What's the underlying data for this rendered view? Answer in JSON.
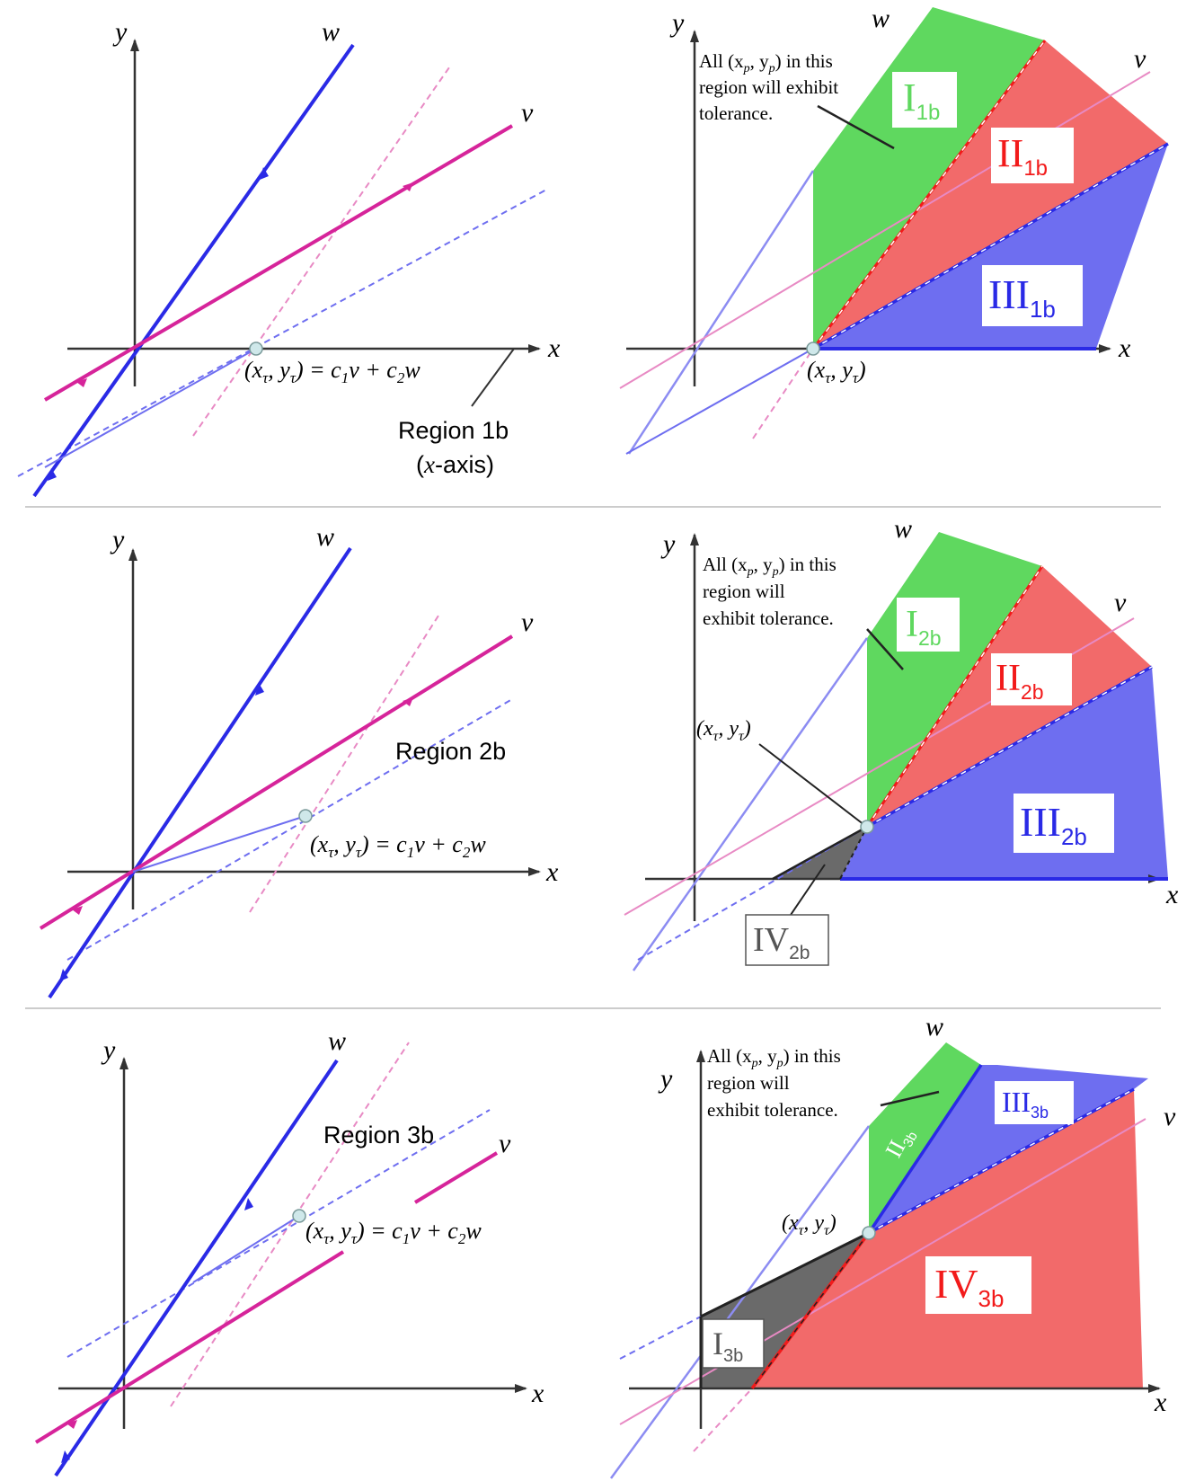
{
  "colors": {
    "blue": "#2a2ae6",
    "blue_light": "#8c8cf2",
    "magenta": "#d6249a",
    "magenta_light": "#e88ac4",
    "green_fill": "#5fd85f",
    "red_fill": "#f26a6a",
    "red_line": "#f21a1a",
    "blue_fill": "#6e6ef0",
    "gray_fill": "#6a6a6a",
    "axis": "#333333",
    "divider": "#cccccc"
  },
  "panels": {
    "p1L": {
      "axis_x": "x",
      "axis_y": "y",
      "w_label": "w",
      "v_label": "v",
      "point_eq_lhs": "(x",
      "point_sub1": "τ",
      "point_mid": ", y",
      "point_sub2": "τ",
      "point_rhs": ") = c",
      "eq_sub1": "1",
      "eq_v": "v + c",
      "eq_sub2": "2",
      "eq_w": "w",
      "region_line1": "Region 1b",
      "region_line2_pre": "(",
      "region_line2_italic": "x",
      "region_line2_post": "-axis)"
    },
    "p1R": {
      "axis_x": "x",
      "axis_y": "y",
      "w_label": "w",
      "v_label": "v",
      "note_line1": "All (x",
      "note_sub1": "p",
      "note_mid": ", y",
      "note_sub2": "p",
      "note_end": ") in this",
      "note_line2": "region will exhibit",
      "note_line3": "tolerance.",
      "label_I": "I",
      "label_I_sub": "1b",
      "label_II": "II",
      "label_II_sub": "1b",
      "label_III": "III",
      "label_III_sub": "1b",
      "point_lhs": "(x",
      "point_sub1": "τ",
      "point_mid": ", y",
      "point_sub2": "τ",
      "point_end": ")"
    },
    "p2L": {
      "axis_x": "x",
      "axis_y": "y",
      "w_label": "w",
      "v_label": "v",
      "region": "Region 2b",
      "point_eq_lhs": "(x",
      "point_sub1": "τ",
      "point_mid": ", y",
      "point_sub2": "τ",
      "point_rhs": ") = c",
      "eq_sub1": "1",
      "eq_v": "v + c",
      "eq_sub2": "2",
      "eq_w": "w"
    },
    "p2R": {
      "axis_x": "x",
      "axis_y": "y",
      "w_label": "w",
      "v_label": "v",
      "note_line1": "All (x",
      "note_sub1": "p",
      "note_mid": ", y",
      "note_sub2": "p",
      "note_end": ") in this",
      "note_line2": "region will",
      "note_line3": "exhibit tolerance.",
      "label_I": "I",
      "label_I_sub": "2b",
      "label_II": "II",
      "label_II_sub": "2b",
      "label_III": "III",
      "label_III_sub": "2b",
      "label_IV": "IV",
      "label_IV_sub": "2b",
      "point_lhs": "(x",
      "point_sub1": "τ",
      "point_mid": ", y",
      "point_sub2": "τ",
      "point_end": ")"
    },
    "p3L": {
      "axis_x": "x",
      "axis_y": "y",
      "w_label": "w",
      "v_label": "v",
      "region": "Region 3b",
      "point_eq_lhs": "(x",
      "point_sub1": "τ",
      "point_mid": ", y",
      "point_sub2": "τ",
      "point_rhs": ") = c",
      "eq_sub1": "1",
      "eq_v": "v + c",
      "eq_sub2": "2",
      "eq_w": "w"
    },
    "p3R": {
      "axis_x": "x",
      "axis_y": "y",
      "w_label": "w",
      "v_label": "v",
      "note_line1": "All (x",
      "note_sub1": "p",
      "note_mid": ", y",
      "note_sub2": "p",
      "note_end": ") in this",
      "note_line2": "region will",
      "note_line3": "exhibit tolerance.",
      "label_I": "I",
      "label_I_sub": "3b",
      "label_II": "II",
      "label_II_sub": "3b",
      "label_III": "III",
      "label_III_sub": "3b",
      "label_IV": "IV",
      "label_IV_sub": "3b",
      "point_lhs": "(x",
      "point_sub1": "τ",
      "point_mid": ", y",
      "point_sub2": "τ",
      "point_end": ")"
    }
  }
}
